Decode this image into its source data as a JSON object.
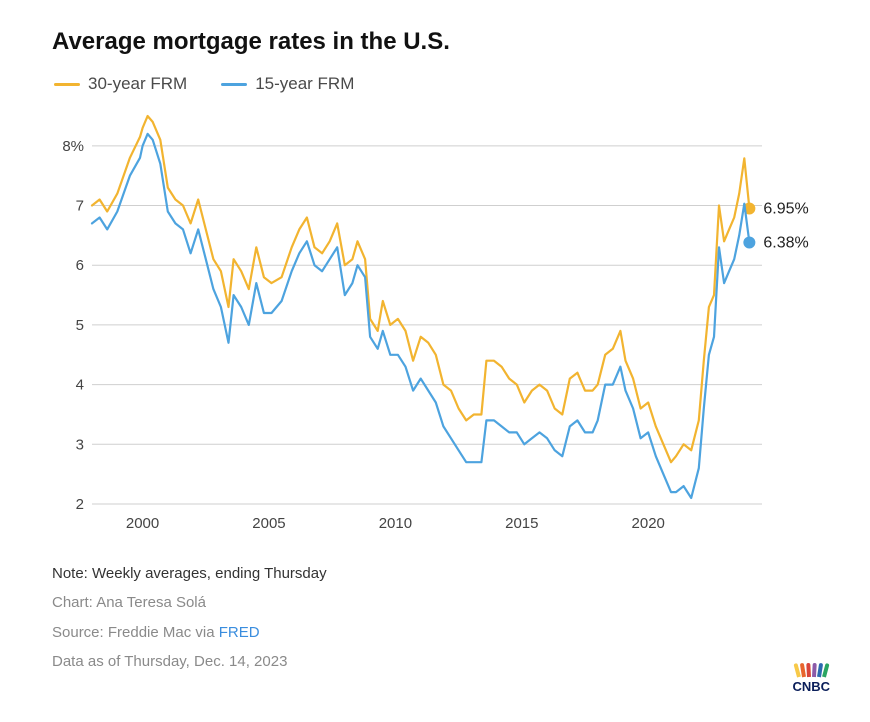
{
  "title": "Average mortgage rates in the U.S.",
  "legend": {
    "series_a": {
      "label": "30-year FRM",
      "color": "#f2b430"
    },
    "series_b": {
      "label": "15-year FRM",
      "color": "#4da3df"
    }
  },
  "chart": {
    "type": "line",
    "background_color": "#ffffff",
    "grid_color": "#cfcfcf",
    "axis_label_color": "#444444",
    "line_width": 2.2,
    "x": {
      "min": 1998,
      "max": 2024.5,
      "ticks": [
        2000,
        2005,
        2010,
        2015,
        2020
      ],
      "tick_labels": [
        "2000",
        "2005",
        "2010",
        "2015",
        "2020"
      ],
      "label_fontsize": 15
    },
    "y": {
      "min": 2,
      "max": 8.6,
      "ticks": [
        2,
        3,
        4,
        5,
        6,
        7,
        8
      ],
      "tick_labels": [
        "2",
        "3",
        "4",
        "5",
        "6",
        "7",
        "8%"
      ],
      "label_fontsize": 15
    },
    "series_a": {
      "name": "30-year FRM",
      "color": "#f2b430",
      "end_marker_color": "#f2b430",
      "end_value": 6.95,
      "end_label": "6.95%",
      "points": [
        [
          1998.0,
          7.0
        ],
        [
          1998.3,
          7.1
        ],
        [
          1998.6,
          6.9
        ],
        [
          1999.0,
          7.2
        ],
        [
          1999.5,
          7.8
        ],
        [
          1999.9,
          8.15
        ],
        [
          2000.0,
          8.3
        ],
        [
          2000.2,
          8.5
        ],
        [
          2000.4,
          8.4
        ],
        [
          2000.7,
          8.1
        ],
        [
          2001.0,
          7.3
        ],
        [
          2001.3,
          7.1
        ],
        [
          2001.6,
          7.0
        ],
        [
          2001.9,
          6.7
        ],
        [
          2002.2,
          7.1
        ],
        [
          2002.5,
          6.6
        ],
        [
          2002.8,
          6.1
        ],
        [
          2003.1,
          5.9
        ],
        [
          2003.4,
          5.3
        ],
        [
          2003.6,
          6.1
        ],
        [
          2003.9,
          5.9
        ],
        [
          2004.2,
          5.6
        ],
        [
          2004.5,
          6.3
        ],
        [
          2004.8,
          5.8
        ],
        [
          2005.1,
          5.7
        ],
        [
          2005.5,
          5.8
        ],
        [
          2005.9,
          6.3
        ],
        [
          2006.2,
          6.6
        ],
        [
          2006.5,
          6.8
        ],
        [
          2006.8,
          6.3
        ],
        [
          2007.1,
          6.2
        ],
        [
          2007.4,
          6.4
        ],
        [
          2007.7,
          6.7
        ],
        [
          2008.0,
          6.0
        ],
        [
          2008.3,
          6.1
        ],
        [
          2008.5,
          6.4
        ],
        [
          2008.8,
          6.1
        ],
        [
          2009.0,
          5.1
        ],
        [
          2009.3,
          4.9
        ],
        [
          2009.5,
          5.4
        ],
        [
          2009.8,
          5.0
        ],
        [
          2010.1,
          5.1
        ],
        [
          2010.4,
          4.9
        ],
        [
          2010.7,
          4.4
        ],
        [
          2011.0,
          4.8
        ],
        [
          2011.3,
          4.7
        ],
        [
          2011.6,
          4.5
        ],
        [
          2011.9,
          4.0
        ],
        [
          2012.2,
          3.9
        ],
        [
          2012.5,
          3.6
        ],
        [
          2012.8,
          3.4
        ],
        [
          2013.1,
          3.5
        ],
        [
          2013.4,
          3.5
        ],
        [
          2013.6,
          4.4
        ],
        [
          2013.9,
          4.4
        ],
        [
          2014.2,
          4.3
        ],
        [
          2014.5,
          4.1
        ],
        [
          2014.8,
          4.0
        ],
        [
          2015.1,
          3.7
        ],
        [
          2015.4,
          3.9
        ],
        [
          2015.7,
          4.0
        ],
        [
          2016.0,
          3.9
        ],
        [
          2016.3,
          3.6
        ],
        [
          2016.6,
          3.5
        ],
        [
          2016.9,
          4.1
        ],
        [
          2017.2,
          4.2
        ],
        [
          2017.5,
          3.9
        ],
        [
          2017.8,
          3.9
        ],
        [
          2018.0,
          4.0
        ],
        [
          2018.3,
          4.5
        ],
        [
          2018.6,
          4.6
        ],
        [
          2018.9,
          4.9
        ],
        [
          2019.1,
          4.4
        ],
        [
          2019.4,
          4.1
        ],
        [
          2019.7,
          3.6
        ],
        [
          2020.0,
          3.7
        ],
        [
          2020.3,
          3.3
        ],
        [
          2020.6,
          3.0
        ],
        [
          2020.9,
          2.7
        ],
        [
          2021.1,
          2.8
        ],
        [
          2021.4,
          3.0
        ],
        [
          2021.7,
          2.9
        ],
        [
          2022.0,
          3.4
        ],
        [
          2022.2,
          4.4
        ],
        [
          2022.4,
          5.3
        ],
        [
          2022.6,
          5.5
        ],
        [
          2022.8,
          7.0
        ],
        [
          2023.0,
          6.4
        ],
        [
          2023.2,
          6.6
        ],
        [
          2023.4,
          6.8
        ],
        [
          2023.6,
          7.2
        ],
        [
          2023.8,
          7.79
        ],
        [
          2024.0,
          6.95
        ]
      ]
    },
    "series_b": {
      "name": "15-year FRM",
      "color": "#4da3df",
      "end_marker_color": "#4da3df",
      "end_value": 6.38,
      "end_label": "6.38%",
      "points": [
        [
          1998.0,
          6.7
        ],
        [
          1998.3,
          6.8
        ],
        [
          1998.6,
          6.6
        ],
        [
          1999.0,
          6.9
        ],
        [
          1999.5,
          7.5
        ],
        [
          1999.9,
          7.8
        ],
        [
          2000.0,
          8.0
        ],
        [
          2000.2,
          8.2
        ],
        [
          2000.4,
          8.1
        ],
        [
          2000.7,
          7.7
        ],
        [
          2001.0,
          6.9
        ],
        [
          2001.3,
          6.7
        ],
        [
          2001.6,
          6.6
        ],
        [
          2001.9,
          6.2
        ],
        [
          2002.2,
          6.6
        ],
        [
          2002.5,
          6.1
        ],
        [
          2002.8,
          5.6
        ],
        [
          2003.1,
          5.3
        ],
        [
          2003.4,
          4.7
        ],
        [
          2003.6,
          5.5
        ],
        [
          2003.9,
          5.3
        ],
        [
          2004.2,
          5.0
        ],
        [
          2004.5,
          5.7
        ],
        [
          2004.8,
          5.2
        ],
        [
          2005.1,
          5.2
        ],
        [
          2005.5,
          5.4
        ],
        [
          2005.9,
          5.9
        ],
        [
          2006.2,
          6.2
        ],
        [
          2006.5,
          6.4
        ],
        [
          2006.8,
          6.0
        ],
        [
          2007.1,
          5.9
        ],
        [
          2007.4,
          6.1
        ],
        [
          2007.7,
          6.3
        ],
        [
          2008.0,
          5.5
        ],
        [
          2008.3,
          5.7
        ],
        [
          2008.5,
          6.0
        ],
        [
          2008.8,
          5.8
        ],
        [
          2009.0,
          4.8
        ],
        [
          2009.3,
          4.6
        ],
        [
          2009.5,
          4.9
        ],
        [
          2009.8,
          4.5
        ],
        [
          2010.1,
          4.5
        ],
        [
          2010.4,
          4.3
        ],
        [
          2010.7,
          3.9
        ],
        [
          2011.0,
          4.1
        ],
        [
          2011.3,
          3.9
        ],
        [
          2011.6,
          3.7
        ],
        [
          2011.9,
          3.3
        ],
        [
          2012.2,
          3.1
        ],
        [
          2012.5,
          2.9
        ],
        [
          2012.8,
          2.7
        ],
        [
          2013.1,
          2.7
        ],
        [
          2013.4,
          2.7
        ],
        [
          2013.6,
          3.4
        ],
        [
          2013.9,
          3.4
        ],
        [
          2014.2,
          3.3
        ],
        [
          2014.5,
          3.2
        ],
        [
          2014.8,
          3.2
        ],
        [
          2015.1,
          3.0
        ],
        [
          2015.4,
          3.1
        ],
        [
          2015.7,
          3.2
        ],
        [
          2016.0,
          3.1
        ],
        [
          2016.3,
          2.9
        ],
        [
          2016.6,
          2.8
        ],
        [
          2016.9,
          3.3
        ],
        [
          2017.2,
          3.4
        ],
        [
          2017.5,
          3.2
        ],
        [
          2017.8,
          3.2
        ],
        [
          2018.0,
          3.4
        ],
        [
          2018.3,
          4.0
        ],
        [
          2018.6,
          4.0
        ],
        [
          2018.9,
          4.3
        ],
        [
          2019.1,
          3.9
        ],
        [
          2019.4,
          3.6
        ],
        [
          2019.7,
          3.1
        ],
        [
          2020.0,
          3.2
        ],
        [
          2020.3,
          2.8
        ],
        [
          2020.6,
          2.5
        ],
        [
          2020.9,
          2.2
        ],
        [
          2021.1,
          2.2
        ],
        [
          2021.4,
          2.3
        ],
        [
          2021.7,
          2.1
        ],
        [
          2022.0,
          2.6
        ],
        [
          2022.2,
          3.6
        ],
        [
          2022.4,
          4.5
        ],
        [
          2022.6,
          4.8
        ],
        [
          2022.8,
          6.3
        ],
        [
          2023.0,
          5.7
        ],
        [
          2023.2,
          5.9
        ],
        [
          2023.4,
          6.1
        ],
        [
          2023.6,
          6.5
        ],
        [
          2023.8,
          7.03
        ],
        [
          2024.0,
          6.38
        ]
      ]
    }
  },
  "notes": {
    "note": "Note: Weekly averages, ending Thursday",
    "chart_credit_label": "Chart: ",
    "chart_credit": "Ana Teresa Solá",
    "source_label": "Source: ",
    "source_text": "Freddie Mac via ",
    "source_link_text": "FRED",
    "asof": "Data as of Thursday, Dec. 14, 2023"
  },
  "logo": {
    "text": "CNBC",
    "colors": [
      "#f7c948",
      "#e8652d",
      "#d9443a",
      "#8b5aa8",
      "#2d6ab0",
      "#2aa562"
    ]
  }
}
